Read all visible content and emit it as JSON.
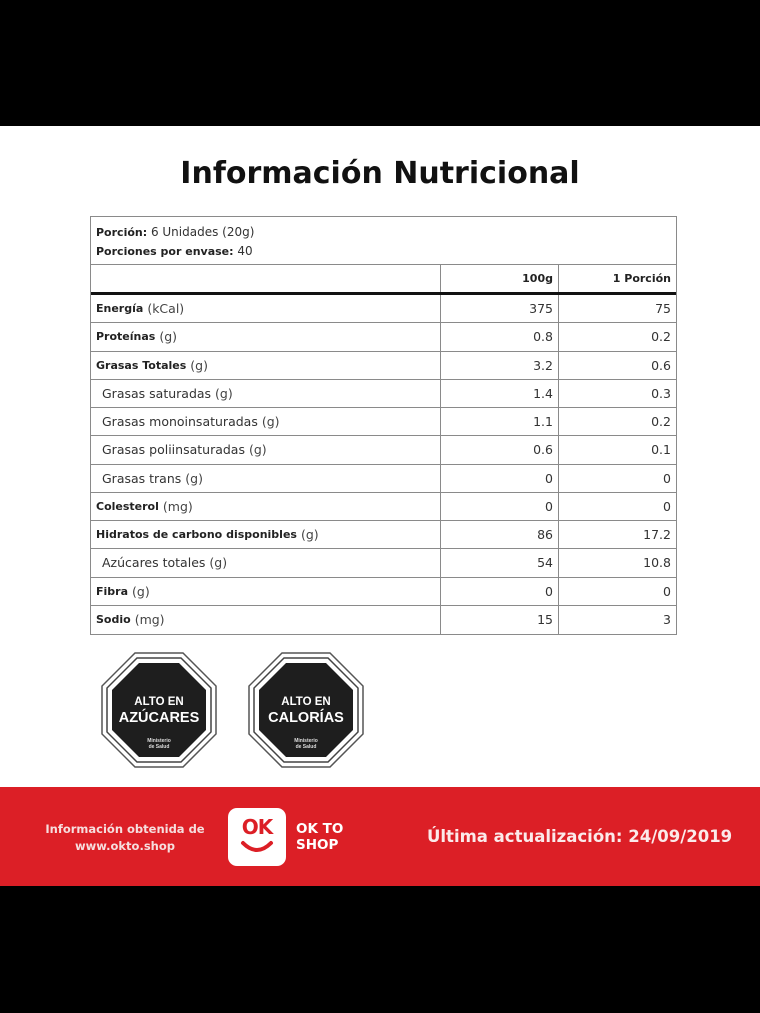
{
  "title": "Información Nutricional",
  "portion": {
    "label": "Porción:",
    "value": "6 Unidades (20g)",
    "per_package_label": "Porciones por envase:",
    "per_package_value": "40"
  },
  "table": {
    "headers": [
      "",
      "100g",
      "1 Porción"
    ],
    "rows": [
      {
        "name": "Energía",
        "unit": "(kCal)",
        "bold": true,
        "per100": "375",
        "perPortion": "75"
      },
      {
        "name": "Proteínas",
        "unit": "(g)",
        "bold": true,
        "per100": "0.8",
        "perPortion": "0.2"
      },
      {
        "name": "Grasas Totales",
        "unit": "(g)",
        "bold": true,
        "per100": "3.2",
        "perPortion": "0.6"
      },
      {
        "name": "Grasas saturadas",
        "unit": "(g)",
        "bold": false,
        "per100": "1.4",
        "perPortion": "0.3"
      },
      {
        "name": "Grasas monoinsaturadas",
        "unit": "(g)",
        "bold": false,
        "per100": "1.1",
        "perPortion": "0.2"
      },
      {
        "name": "Grasas poliinsaturadas",
        "unit": "(g)",
        "bold": false,
        "per100": "0.6",
        "perPortion": "0.1"
      },
      {
        "name": "Grasas trans",
        "unit": "(g)",
        "bold": false,
        "per100": "0",
        "perPortion": "0"
      },
      {
        "name": "Colesterol",
        "unit": "(mg)",
        "bold": true,
        "per100": "0",
        "perPortion": "0"
      },
      {
        "name": "Hidratos de carbono disponibles",
        "unit": "(g)",
        "bold": true,
        "per100": "86",
        "perPortion": "17.2"
      },
      {
        "name": "Azúcares totales",
        "unit": "(g)",
        "bold": false,
        "per100": "54",
        "perPortion": "10.8"
      },
      {
        "name": "Fibra",
        "unit": "(g)",
        "bold": true,
        "per100": "0",
        "perPortion": "0"
      },
      {
        "name": "Sodio",
        "unit": "(mg)",
        "bold": true,
        "per100": "15",
        "perPortion": "3"
      }
    ]
  },
  "seals": [
    {
      "line1": "ALTO EN",
      "line2": "AZÚCARES",
      "authority": "Ministerio de Salud"
    },
    {
      "line1": "ALTO EN",
      "line2": "CALORÍAS",
      "authority": "Ministerio de Salud"
    }
  ],
  "footer": {
    "source_line1": "Información obtenida de",
    "source_line2": "www.okto.shop",
    "logo_text": "OK",
    "brand_line1": "OK TO",
    "brand_line2": "SHOP",
    "updated": "Última actualización: 24/09/2019",
    "color": "#dc1f26"
  }
}
